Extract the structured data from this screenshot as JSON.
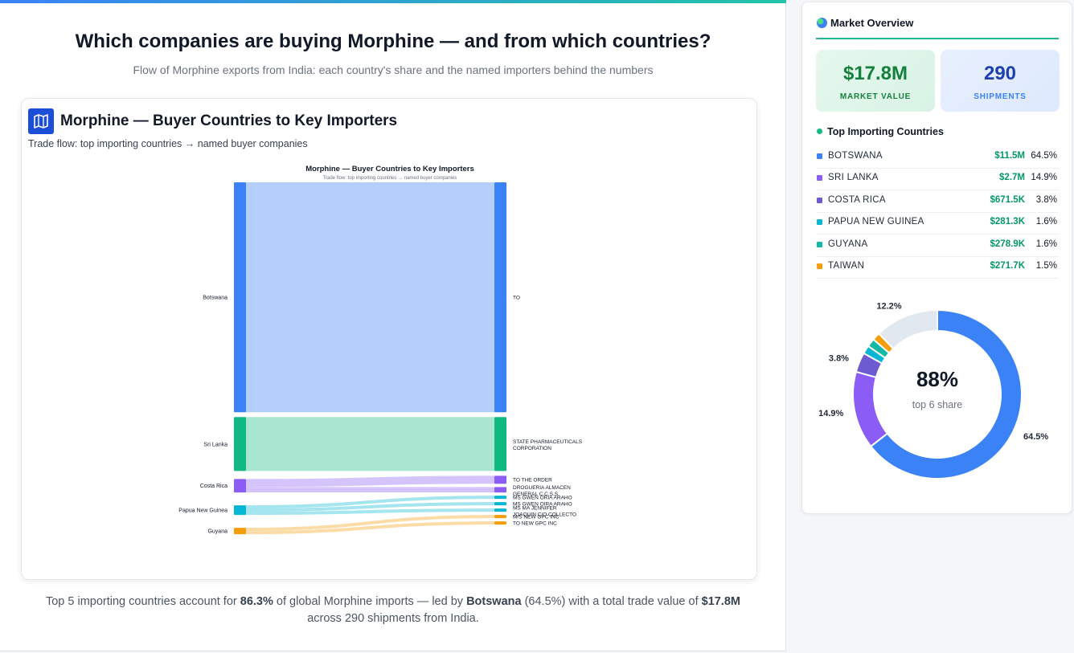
{
  "page": {
    "title": "Which companies are buying Morphine — and from which countries?",
    "subtitle": "Flow of Morphine exports from India: each country's share and the named importers behind the numbers"
  },
  "card": {
    "title": "Morphine — Buyer Countries to Key Importers",
    "subtitle": "Trade flow: top importing countries → named buyer companies",
    "icon": "map-icon"
  },
  "chart_data": [
    {
      "type": "sankey",
      "title": "Morphine — Buyer Countries to Key Importers",
      "subtitle": "Trade flow: top importing countries → named buyer companies",
      "sources": [
        "Botswana",
        "Sri Lanka",
        "Costa Rica",
        "Papua New Guinea",
        "Guyana"
      ],
      "targets": [
        "TO",
        "STATE PHARMACEUTICALS CORPORATION",
        "TO THE ORDER",
        "DROGUERIA ALMACEN GENERAL C.C.S.S.",
        "MS GWEN ORIA ARAHO",
        "MS GWEN OIRA ARAHO",
        "MS MA JENNIFER JOAQUIN C/O COLLECTO",
        "M/S NEW GPC INC",
        "TO NEW GPC INC"
      ],
      "colors": {
        "Botswana": "#3b82f6",
        "Sri Lanka": "#10b981",
        "Costa Rica": "#8b5cf6",
        "Papua New Guinea": "#06b6d4",
        "Guyana": "#f59e0b"
      },
      "links": [
        {
          "source": "Botswana",
          "target": "TO",
          "value": 11.5
        },
        {
          "source": "Sri Lanka",
          "target": "STATE PHARMACEUTICALS CORPORATION",
          "value": 2.7
        },
        {
          "source": "Costa Rica",
          "target": "TO THE ORDER",
          "value": 0.4
        },
        {
          "source": "Costa Rica",
          "target": "DROGUERIA ALMACEN GENERAL C.C.S.S.",
          "value": 0.27
        },
        {
          "source": "Papua New Guinea",
          "target": "MS GWEN ORIA ARAHO",
          "value": 0.1
        },
        {
          "source": "Papua New Guinea",
          "target": "MS GWEN OIRA ARAHO",
          "value": 0.09
        },
        {
          "source": "Papua New Guinea",
          "target": "MS MA JENNIFER JOAQUIN C/O COLLECTO",
          "value": 0.09
        },
        {
          "source": "Guyana",
          "target": "M/S NEW GPC INC",
          "value": 0.16
        },
        {
          "source": "Guyana",
          "target": "TO NEW GPC INC",
          "value": 0.12
        }
      ]
    },
    {
      "type": "pie",
      "center_value": "88%",
      "center_label": "top 6 share",
      "slices": [
        {
          "name": "BOTSWANA",
          "value": 64.5,
          "label": "64.5%",
          "color": "#3b82f6"
        },
        {
          "name": "SRI LANKA",
          "value": 14.9,
          "label": "14.9%",
          "color": "#8b5cf6"
        },
        {
          "name": "COSTA RICA",
          "value": 3.8,
          "label": "3.8%",
          "color": "#6d5bd0"
        },
        {
          "name": "PAPUA NEW GUINEA",
          "value": 1.6,
          "label": "",
          "color": "#06b6d4"
        },
        {
          "name": "GUYANA",
          "value": 1.6,
          "label": "",
          "color": "#14b8a6"
        },
        {
          "name": "TAIWAN",
          "value": 1.5,
          "label": "",
          "color": "#f59e0b"
        },
        {
          "name": "Other",
          "value": 12.2,
          "label": "12.2%",
          "color": "#e2e8f0"
        }
      ]
    }
  ],
  "footer": {
    "p1": "Top 5 importing countries account for ",
    "top5_share": "86.3%",
    "p2": " of global Morphine imports — led by ",
    "leader": "Botswana",
    "p3": " (64.5%) with a total trade value of ",
    "total": "$17.8M",
    "p4": "across 290 shipments from India."
  },
  "sidebar": {
    "title": "Market Overview",
    "icon": "globe-icon",
    "kpis": {
      "market_value": "$17.8M",
      "market_label": "MARKET VALUE",
      "shipments": "290",
      "shipments_label": "SHIPMENTS"
    },
    "countries_heading": "Top Importing Countries",
    "countries": [
      {
        "name": "BOTSWANA",
        "value": "$11.5M",
        "share": "64.5%",
        "color": "#3b82f6"
      },
      {
        "name": "SRI LANKA",
        "value": "$2.7M",
        "share": "14.9%",
        "color": "#8b5cf6"
      },
      {
        "name": "COSTA RICA",
        "value": "$671.5K",
        "share": "3.8%",
        "color": "#6d5bd0"
      },
      {
        "name": "PAPUA NEW GUINEA",
        "value": "$281.3K",
        "share": "1.6%",
        "color": "#06b6d4"
      },
      {
        "name": "GUYANA",
        "value": "$278.9K",
        "share": "1.6%",
        "color": "#14b8a6"
      },
      {
        "name": "TAIWAN",
        "value": "$271.7K",
        "share": "1.5%",
        "color": "#f59e0b"
      }
    ]
  }
}
